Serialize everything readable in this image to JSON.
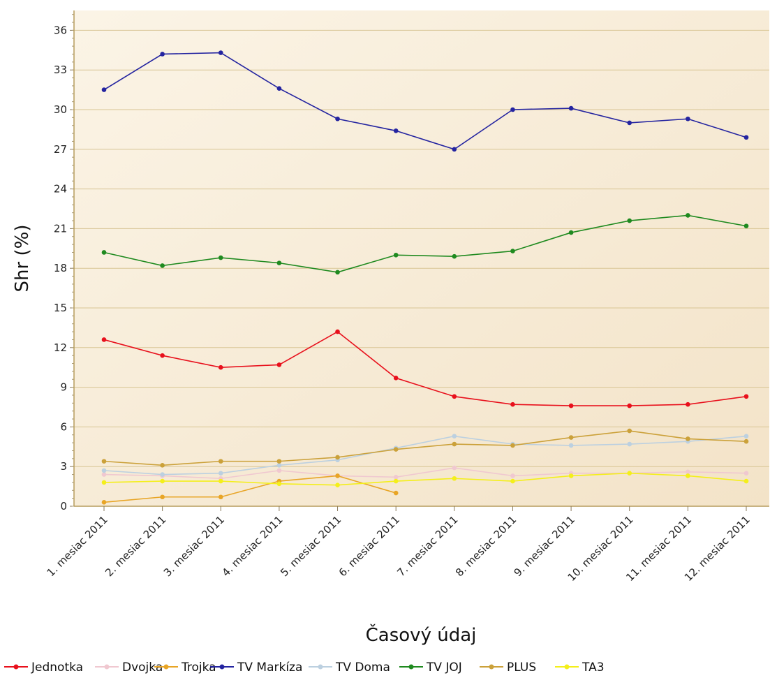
{
  "chart_data": {
    "type": "line",
    "xlabel": "Časový údaj",
    "ylabel": "Shr (%)",
    "ylim": [
      0,
      37.5
    ],
    "yticks": [
      0,
      3,
      6,
      9,
      12,
      15,
      18,
      21,
      24,
      27,
      30,
      33,
      36
    ],
    "grid": "horizontal",
    "legend_position": "bottom",
    "categories": [
      "1. mesiac 2011",
      "2. mesiac 2011",
      "3. mesiac 2011",
      "4. mesiac 2011",
      "5. mesiac 2011",
      "6. mesiac 2011",
      "7. mesiac 2011",
      "8. mesiac 2011",
      "9. mesiac 2011",
      "10. mesiac 2011",
      "11. mesiac 2011",
      "12. mesiac 2011"
    ],
    "series": [
      {
        "name": "Jednotka",
        "color": "#e8101c",
        "values": [
          12.6,
          11.4,
          10.5,
          10.7,
          13.2,
          9.7,
          8.3,
          7.7,
          7.6,
          7.6,
          7.7,
          8.3
        ]
      },
      {
        "name": "Dvojka",
        "color": "#f0c8d0",
        "values": [
          2.4,
          2.3,
          2.1,
          2.7,
          2.3,
          2.2,
          2.9,
          2.3,
          2.5,
          2.5,
          2.6,
          2.5
        ]
      },
      {
        "name": "Trojka",
        "color": "#e8a526",
        "values": [
          0.3,
          0.7,
          0.7,
          1.9,
          2.3,
          1.0,
          null,
          null,
          null,
          null,
          null,
          null
        ]
      },
      {
        "name": "TV Markíza",
        "color": "#2424a0",
        "values": [
          31.5,
          34.2,
          34.3,
          31.6,
          29.3,
          28.4,
          27.0,
          30.0,
          30.1,
          29.0,
          29.3,
          27.9
        ]
      },
      {
        "name": "TV Doma",
        "color": "#bcd0e0",
        "values": [
          2.7,
          2.4,
          2.5,
          3.1,
          3.5,
          4.4,
          5.3,
          4.7,
          4.6,
          4.7,
          4.9,
          5.3
        ]
      },
      {
        "name": "TV JOJ",
        "color": "#1f8a1f",
        "values": [
          19.2,
          18.2,
          18.8,
          18.4,
          17.7,
          19.0,
          18.9,
          19.3,
          20.7,
          21.6,
          22.0,
          21.2
        ]
      },
      {
        "name": "PLUS",
        "color": "#cba13a",
        "values": [
          3.4,
          3.1,
          3.4,
          3.4,
          3.7,
          4.3,
          4.7,
          4.6,
          5.2,
          5.7,
          5.1,
          4.9
        ]
      },
      {
        "name": "TA3",
        "color": "#f4ef1a",
        "values": [
          1.8,
          1.9,
          1.9,
          1.7,
          1.6,
          1.9,
          2.1,
          1.9,
          2.3,
          2.5,
          2.3,
          1.9
        ]
      }
    ]
  }
}
